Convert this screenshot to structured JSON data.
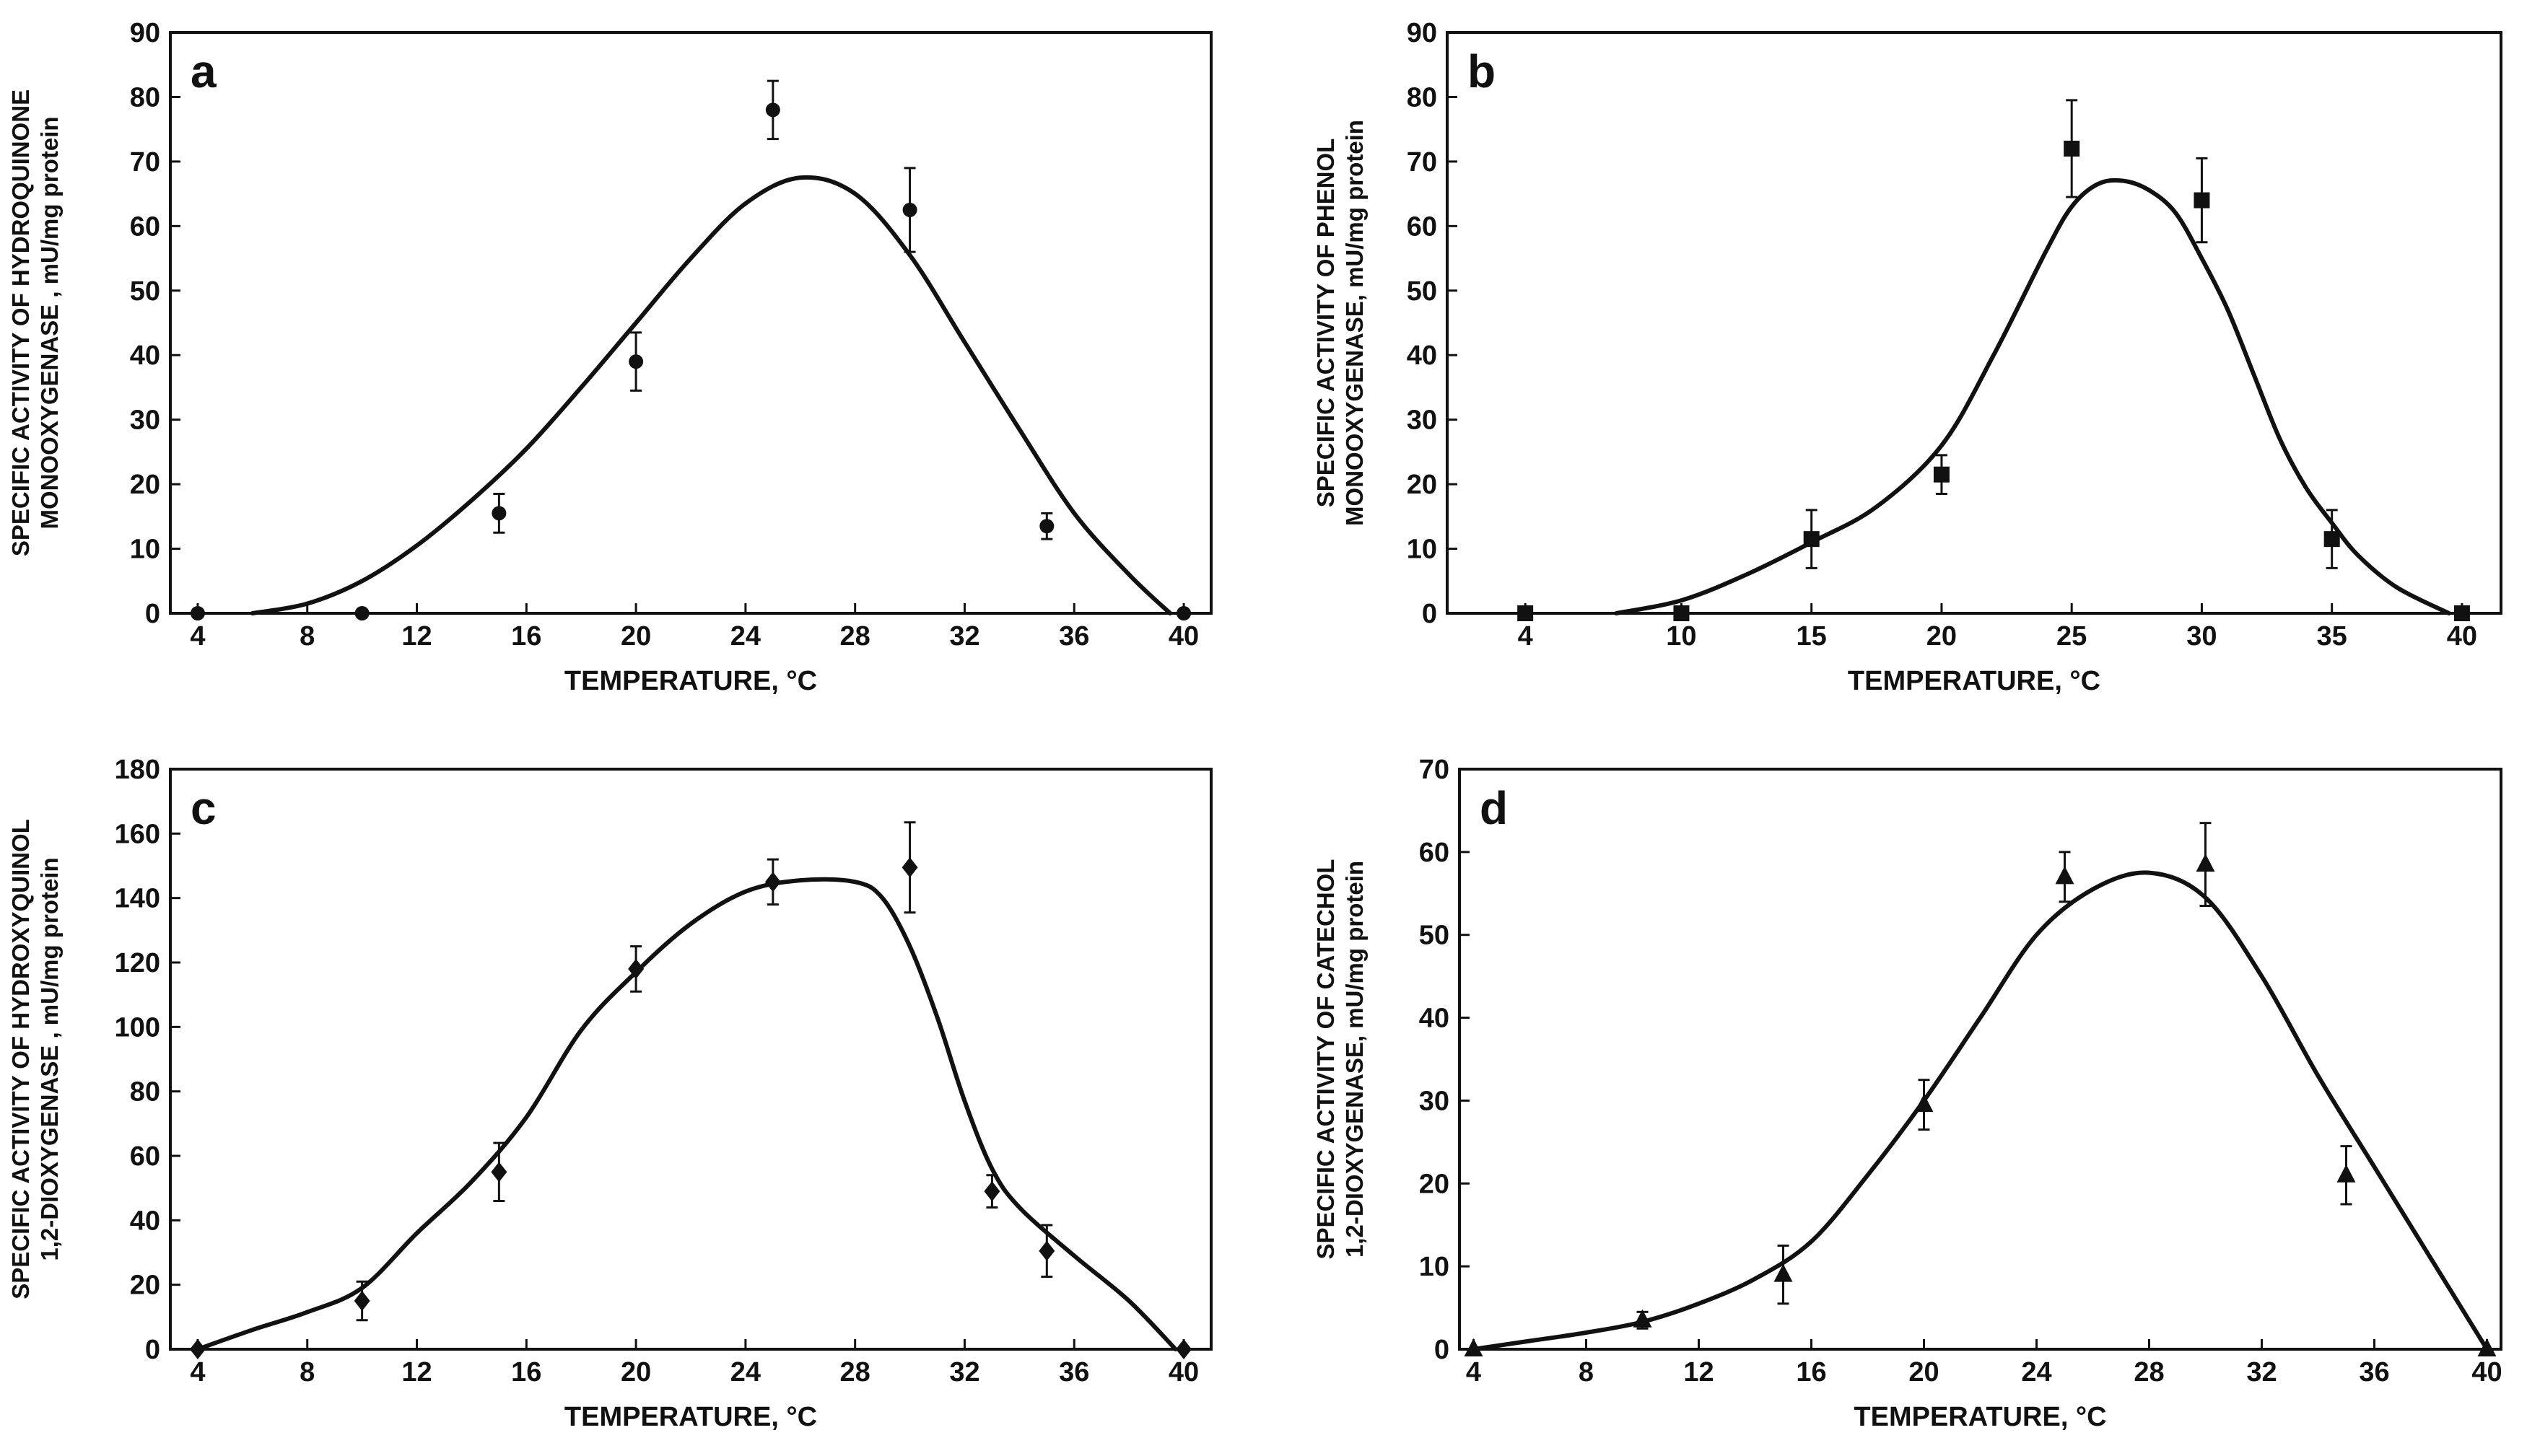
{
  "chart_data": [
    {
      "type": "scatter",
      "panel_label": "a",
      "marker": "circle",
      "xlabel": "TEMPERATURE, °C",
      "ylabel": [
        "SPECIFIC ACTIVITY OF HYDROQUINONE",
        "MONOOXYGENASE , mU/mg protein"
      ],
      "xlim": [
        3,
        41
      ],
      "ylim": [
        0,
        90
      ],
      "xticks": [
        4,
        8,
        12,
        16,
        20,
        24,
        28,
        32,
        36,
        40
      ],
      "yticks": [
        0,
        10,
        20,
        30,
        40,
        50,
        60,
        70,
        80,
        90
      ],
      "points": [
        {
          "x": 4,
          "y": 0,
          "err": 0
        },
        {
          "x": 10,
          "y": 0,
          "err": 0
        },
        {
          "x": 15,
          "y": 15.5,
          "err": 3
        },
        {
          "x": 20,
          "y": 39,
          "err": 4.5
        },
        {
          "x": 25,
          "y": 78,
          "err": 4.5
        },
        {
          "x": 30,
          "y": 62.5,
          "err": 6.5
        },
        {
          "x": 35,
          "y": 13.5,
          "err": 2
        },
        {
          "x": 40,
          "y": 0,
          "err": 0
        }
      ],
      "fit_curve": {
        "x": [
          6,
          8,
          10,
          12,
          14,
          16,
          18,
          20,
          22,
          24,
          26,
          28,
          30,
          32,
          34,
          36,
          38,
          39.5
        ],
        "y": [
          0,
          1.5,
          5,
          10.5,
          17.5,
          25.5,
          35,
          45,
          55,
          63.5,
          67.5,
          65,
          55.5,
          42,
          28.5,
          15.5,
          6,
          0
        ]
      }
    },
    {
      "type": "scatter",
      "panel_label": "b",
      "marker": "square",
      "xlabel": "TEMPERATURE, °C",
      "ylabel": [
        "SPECIFIC ACTIVITY OF PHENOL",
        "MONOOXYGENASE, mU/mg protein"
      ],
      "xlim": [
        1,
        41.5
      ],
      "ylim": [
        0,
        90
      ],
      "xticks": [
        4,
        10,
        15,
        20,
        25,
        30,
        35,
        40
      ],
      "yticks": [
        0,
        10,
        20,
        30,
        40,
        50,
        60,
        70,
        80,
        90
      ],
      "points": [
        {
          "x": 4,
          "y": 0,
          "err": 0
        },
        {
          "x": 10,
          "y": 0,
          "err": 0
        },
        {
          "x": 15,
          "y": 11.5,
          "err": 4.5
        },
        {
          "x": 20,
          "y": 21.5,
          "err": 3
        },
        {
          "x": 25,
          "y": 72,
          "err": 7.5
        },
        {
          "x": 30,
          "y": 64,
          "err": 6.5
        },
        {
          "x": 35,
          "y": 11.5,
          "err": 4.5
        },
        {
          "x": 40,
          "y": 0,
          "err": 0
        }
      ],
      "fit_curve": {
        "x": [
          7.5,
          10,
          12.5,
          15,
          17.5,
          20,
          22,
          24,
          25,
          26,
          27,
          28,
          29,
          30,
          31,
          32,
          33,
          34,
          35,
          36,
          37.5,
          39.5
        ],
        "y": [
          0,
          2,
          6,
          11,
          16.5,
          26,
          40,
          56,
          63,
          66.5,
          67,
          65.5,
          62,
          55,
          47,
          37,
          27,
          19.5,
          14,
          9,
          4,
          0
        ]
      }
    },
    {
      "type": "scatter",
      "panel_label": "c",
      "marker": "diamond",
      "xlabel": "TEMPERATURE, °C",
      "ylabel": [
        "SPECIFIC ACTIVITY OF HYDROXYQUINOL",
        "1,2-DIOXYGENASE , mU/mg protein"
      ],
      "xlim": [
        3,
        41
      ],
      "ylim": [
        0,
        180
      ],
      "xticks": [
        4,
        8,
        12,
        16,
        20,
        24,
        28,
        32,
        36,
        40
      ],
      "yticks": [
        0,
        20,
        40,
        60,
        80,
        100,
        120,
        140,
        160,
        180
      ],
      "points": [
        {
          "x": 4,
          "y": 0,
          "err": 0
        },
        {
          "x": 10,
          "y": 15,
          "err": 6
        },
        {
          "x": 15,
          "y": 55,
          "err": 9
        },
        {
          "x": 20,
          "y": 118,
          "err": 7
        },
        {
          "x": 25,
          "y": 145,
          "err": 7
        },
        {
          "x": 30,
          "y": 149.5,
          "err": 14
        },
        {
          "x": 33,
          "y": 49,
          "err": 5
        },
        {
          "x": 35,
          "y": 30.5,
          "err": 8
        },
        {
          "x": 40,
          "y": 0,
          "err": 0
        }
      ],
      "fit_curve": {
        "x": [
          4,
          6,
          8,
          10,
          12,
          14,
          16,
          18,
          20,
          22,
          24,
          26,
          28,
          29,
          30,
          31,
          32,
          33,
          34,
          36,
          38,
          39.7
        ],
        "y": [
          0,
          6,
          11.5,
          19,
          36,
          52,
          72,
          99,
          117,
          132,
          142,
          145.5,
          145,
          140,
          125,
          103,
          77,
          56,
          44,
          29,
          15,
          0
        ]
      }
    },
    {
      "type": "scatter",
      "panel_label": "d",
      "marker": "triangle",
      "xlabel": "TEMPERATURE, °C",
      "ylabel": [
        "SPECIFIC ACTIVITY OF CATECHOL",
        "1,2-DIOXYGENASE, mU/mg protein"
      ],
      "xlim": [
        3.5,
        40.5
      ],
      "ylim": [
        0,
        70
      ],
      "xticks": [
        4,
        8,
        12,
        16,
        20,
        24,
        28,
        32,
        36,
        40
      ],
      "yticks": [
        0,
        10,
        20,
        30,
        40,
        50,
        60,
        70
      ],
      "points": [
        {
          "x": 4,
          "y": 0,
          "err": 0
        },
        {
          "x": 10,
          "y": 3.5,
          "err": 1
        },
        {
          "x": 15,
          "y": 9,
          "err": 3.5
        },
        {
          "x": 20,
          "y": 29.5,
          "err": 3
        },
        {
          "x": 25,
          "y": 57,
          "err": 3
        },
        {
          "x": 30,
          "y": 58.5,
          "err": 5
        },
        {
          "x": 35,
          "y": 21,
          "err": 3.5
        },
        {
          "x": 40,
          "y": 0,
          "err": 0
        }
      ],
      "fit_curve": {
        "x": [
          4,
          6,
          8,
          10,
          12,
          14,
          16,
          18,
          20,
          22,
          24,
          26,
          28,
          30,
          32,
          34,
          36,
          38,
          40
        ],
        "y": [
          0,
          1,
          2,
          3.3,
          5.5,
          8.5,
          13,
          21,
          30,
          40,
          50,
          55.5,
          57.5,
          54.5,
          45,
          33,
          22,
          11,
          0
        ]
      }
    }
  ]
}
